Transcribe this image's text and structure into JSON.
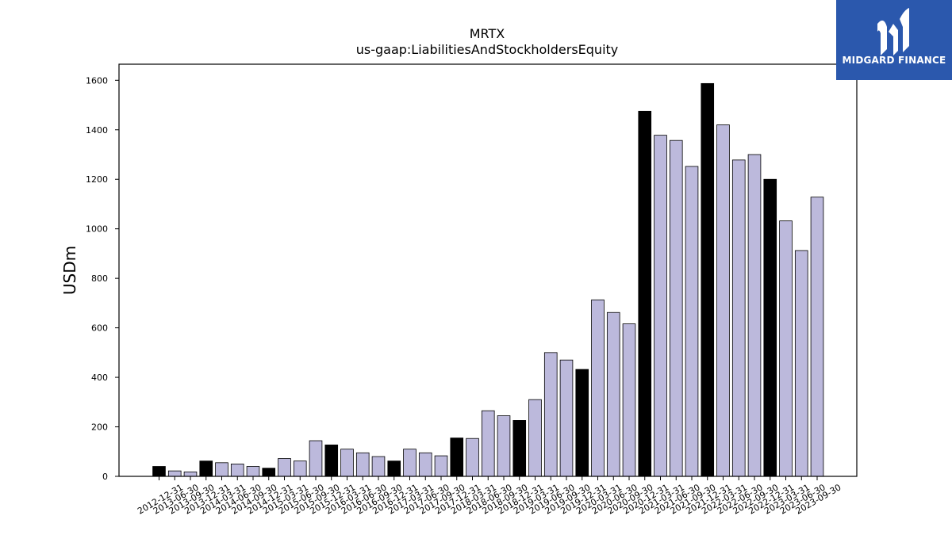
{
  "brand": {
    "name": "MIDGARD FINANCE",
    "bg_color": "#2b58ad",
    "icon": "midgard-logo-icon"
  },
  "chart_data": {
    "type": "bar",
    "title": "MRTX",
    "subtitle": "us-gaap:LiabilitiesAndStockholdersEquity",
    "xlabel": "",
    "ylabel": "USDm",
    "ylim": [
      0,
      1665
    ],
    "yticks": [
      0,
      200,
      400,
      600,
      800,
      1000,
      1200,
      1400,
      1600
    ],
    "grid": false,
    "colors": {
      "annual": "#000000",
      "quarterly": "#bcb9dc",
      "edge": "#000000"
    },
    "categories": [
      "2012-12-31",
      "2013-06-30",
      "2013-09-30",
      "2013-12-31",
      "2014-03-31",
      "2014-06-30",
      "2014-09-30",
      "2014-12-31",
      "2015-03-31",
      "2015-06-30",
      "2015-09-30",
      "2015-12-31",
      "2016-03-31",
      "2016-06-30",
      "2016-09-30",
      "2016-12-31",
      "2017-03-31",
      "2017-06-30",
      "2017-09-30",
      "2017-12-31",
      "2018-03-31",
      "2018-06-30",
      "2018-09-30",
      "2018-12-31",
      "2019-03-31",
      "2019-06-30",
      "2019-09-30",
      "2019-12-31",
      "2020-03-31",
      "2020-06-30",
      "2020-09-30",
      "2020-12-31",
      "2021-03-31",
      "2021-06-30",
      "2021-09-30",
      "2021-12-31",
      "2022-03-31",
      "2022-06-30",
      "2022-09-30",
      "2022-12-31",
      "2023-03-31",
      "2023-06-30",
      "2023-09-30"
    ],
    "values": [
      40,
      22,
      18,
      62,
      55,
      50,
      40,
      33,
      72,
      62,
      144,
      127,
      110,
      95,
      80,
      62,
      110,
      95,
      83,
      155,
      153,
      265,
      245,
      226,
      310,
      500,
      470,
      432,
      713,
      662,
      616,
      1475,
      1378,
      1357,
      1252,
      1587,
      1420,
      1278,
      1300,
      1200,
      1032,
      912,
      1128
    ],
    "annual": [
      true,
      false,
      false,
      true,
      false,
      false,
      false,
      true,
      false,
      false,
      false,
      true,
      false,
      false,
      false,
      true,
      false,
      false,
      false,
      true,
      false,
      false,
      false,
      true,
      false,
      false,
      false,
      true,
      false,
      false,
      false,
      true,
      false,
      false,
      false,
      true,
      false,
      false,
      false,
      true,
      false,
      false,
      false
    ]
  }
}
